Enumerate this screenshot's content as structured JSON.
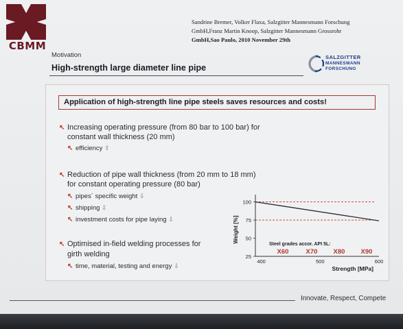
{
  "header": {
    "logo_text": "CBMM",
    "authors_line1": "Sandrine Bremer, Volker Flaxa, Salzgitter Mannesmann Forschung",
    "authors_line2": "GmbH,Franz Martin Knoop, Salzgitter Mannesmann Grossrohr",
    "authors_line3": "GmbH,Sao Paulo, 2010 November 29th",
    "section_label": "Motivation",
    "title": "High-strength large diameter line pipe",
    "partner_logo": {
      "line1": "SALZGITTER",
      "line2": "MANNESMANN",
      "line3": "FORSCHUNG"
    }
  },
  "headline": "Application of high-strength line pipe steels saves resources and costs!",
  "points": [
    {
      "line1": "Increasing operating pressure (from 80 bar to 100 bar) for",
      "line2": "constant wall thickness (20 mm)",
      "subs": [
        {
          "label": "efficiency",
          "arrow": "⇧"
        }
      ]
    },
    {
      "line1": "Reduction of pipe wall thickness (from 20 mm to 18 mm)",
      "line2": "for constant operating pressure (80 bar)",
      "subs": [
        {
          "label": "pipes´ specific weight",
          "arrow": "⇩"
        },
        {
          "label": "shipping",
          "arrow": "⇩"
        },
        {
          "label": "investment costs for pipe laying",
          "arrow": "⇩"
        }
      ]
    },
    {
      "line1": "Optimised in-field welding processes for",
      "line2": "girth welding",
      "subs": [
        {
          "label": "time, material, testing and energy",
          "arrow": "⇩"
        }
      ]
    }
  ],
  "chart_data": {
    "type": "line",
    "xlabel": "Strength [MPa]",
    "ylabel": "Weight [%]",
    "x_ticks": [
      "400",
      "500",
      "600"
    ],
    "y_ticks": [
      "25",
      "50",
      "75",
      "100"
    ],
    "xlim": [
      390,
      600
    ],
    "ylim": [
      25,
      110
    ],
    "series": [
      {
        "x": [
          390,
          600
        ],
        "y": [
          100,
          74
        ]
      }
    ],
    "reference_y": [
      75,
      100
    ],
    "annotation": "Steel grades accor. API 5L:",
    "grades": [
      "X60",
      "X70",
      "X80",
      "X90"
    ]
  },
  "footer": {
    "motto": "Innovate, Respect, Compete"
  },
  "colors": {
    "accent_red": "#c0392b",
    "logo_maroon": "#6a1a22",
    "partner_blue": "#1f3c8a"
  }
}
